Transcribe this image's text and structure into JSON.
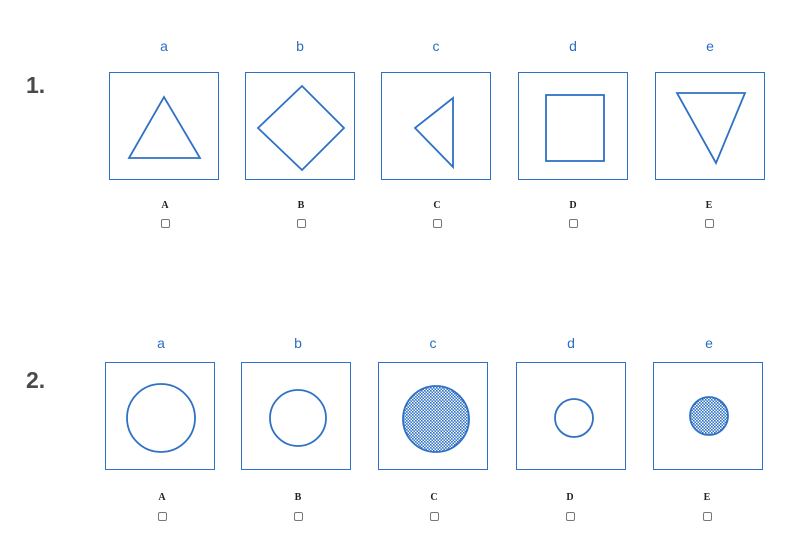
{
  "questions": [
    {
      "number": "1.",
      "columns": [
        {
          "letter": "a",
          "shape": "triangle-up-icon",
          "option": "A"
        },
        {
          "letter": "b",
          "shape": "diamond-icon",
          "option": "B"
        },
        {
          "letter": "c",
          "shape": "triangle-left-icon",
          "option": "C"
        },
        {
          "letter": "d",
          "shape": "square-icon",
          "option": "D"
        },
        {
          "letter": "e",
          "shape": "triangle-down-icon",
          "option": "E"
        }
      ]
    },
    {
      "number": "2.",
      "columns": [
        {
          "letter": "a",
          "shape": "large-circle-icon",
          "option": "A"
        },
        {
          "letter": "b",
          "shape": "medium-circle-icon",
          "option": "B"
        },
        {
          "letter": "c",
          "shape": "large-dotted-circle-icon",
          "option": "C"
        },
        {
          "letter": "d",
          "shape": "small-circle-icon",
          "option": "D"
        },
        {
          "letter": "e",
          "shape": "small-dotted-circle-icon",
          "option": "E"
        }
      ]
    }
  ],
  "colors": {
    "stroke": "#2f72c4",
    "letter": "#2a6fbf",
    "fill_dots": "#2f72c4"
  }
}
